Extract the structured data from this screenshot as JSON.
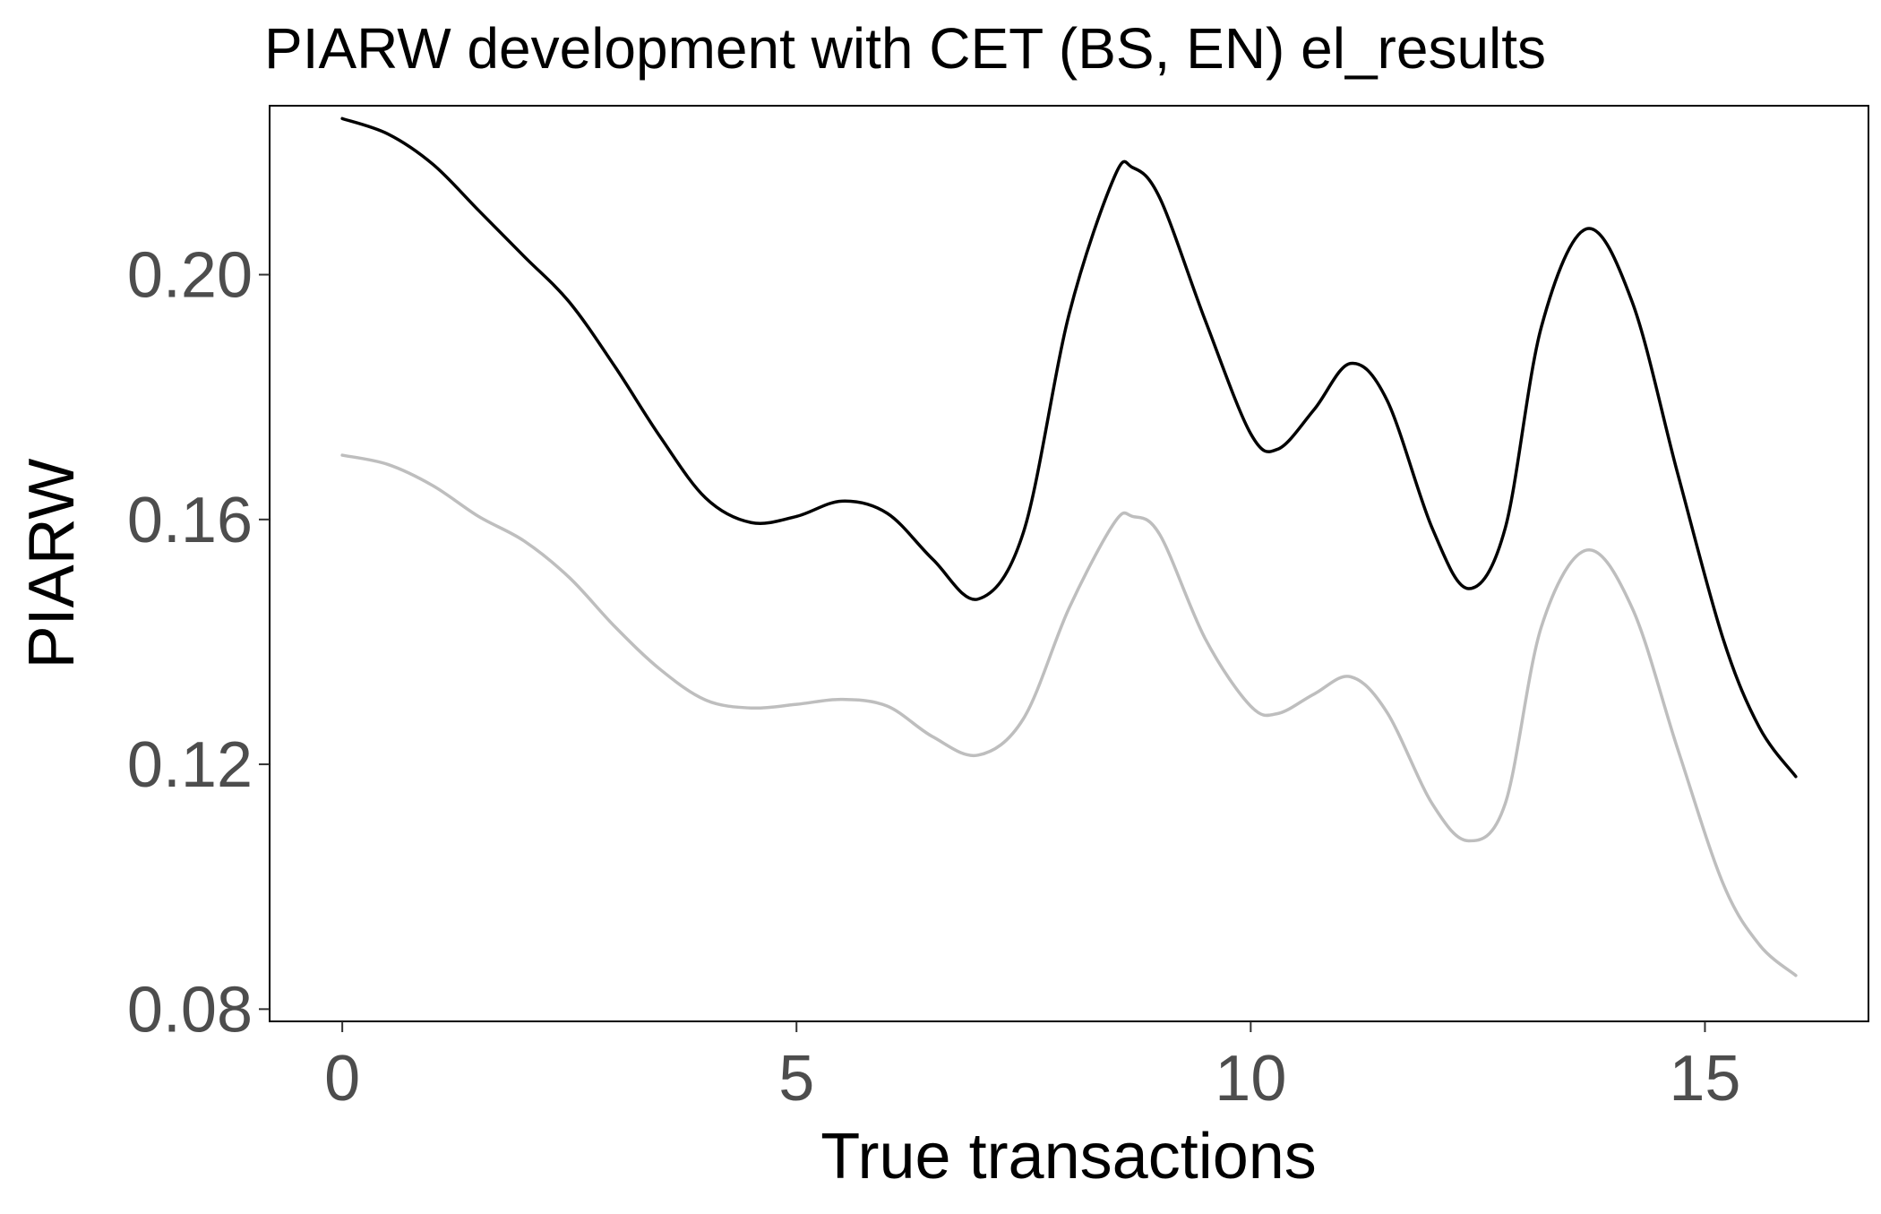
{
  "chart_data": {
    "type": "line",
    "title": "PIARW development with CET (BS, EN) el_results",
    "xlabel": "True transactions",
    "ylabel": "PIARW",
    "xlim": [
      -0.8,
      16.8
    ],
    "ylim": [
      0.078,
      0.2276
    ],
    "xticks": [
      0,
      5,
      10,
      15
    ],
    "xtick_labels": [
      "0",
      "5",
      "10",
      "15"
    ],
    "yticks": [
      0.08,
      0.12,
      0.16,
      0.2
    ],
    "ytick_labels": [
      "0.08",
      "0.12",
      "0.16",
      "0.20"
    ],
    "grid": false,
    "legend": "none",
    "series": [
      {
        "color": "#000000",
        "x": [
          0,
          0.5,
          1,
          1.5,
          2,
          2.5,
          3,
          3.5,
          4,
          4.5,
          5,
          5.5,
          6,
          6.5,
          7,
          7.5,
          8,
          8.5,
          8.7,
          9,
          9.5,
          10,
          10.3,
          10.7,
          11.1,
          11.5,
          12,
          12.4,
          12.8,
          13.2,
          13.7,
          14.2,
          14.7,
          15.2,
          15.6,
          16
        ],
        "y": [
          0.2255,
          0.223,
          0.218,
          0.2105,
          0.203,
          0.1955,
          0.185,
          0.1735,
          0.1635,
          0.1595,
          0.1605,
          0.163,
          0.161,
          0.1535,
          0.147,
          0.158,
          0.1935,
          0.216,
          0.2175,
          0.2125,
          0.1925,
          0.174,
          0.1715,
          0.178,
          0.1855,
          0.1795,
          0.1585,
          0.1487,
          0.1585,
          0.1915,
          0.2075,
          0.1955,
          0.1675,
          0.1405,
          0.126,
          0.118
        ]
      },
      {
        "color": "#bebebe",
        "x": [
          0,
          0.5,
          1,
          1.5,
          2,
          2.5,
          3,
          3.5,
          4,
          4.5,
          5,
          5.5,
          6,
          6.5,
          7,
          7.5,
          8,
          8.5,
          8.7,
          9,
          9.5,
          10,
          10.3,
          10.7,
          11.1,
          11.5,
          12,
          12.4,
          12.8,
          13.2,
          13.7,
          14.2,
          14.7,
          15.2,
          15.6,
          16
        ],
        "y": [
          0.1705,
          0.169,
          0.1655,
          0.1605,
          0.1565,
          0.1505,
          0.1425,
          0.1355,
          0.1305,
          0.1292,
          0.1298,
          0.1306,
          0.1295,
          0.1245,
          0.1215,
          0.1275,
          0.1455,
          0.1595,
          0.1605,
          0.1575,
          0.1405,
          0.1295,
          0.1283,
          0.1315,
          0.1343,
          0.1285,
          0.1135,
          0.1075,
          0.1135,
          0.1425,
          0.155,
          0.1455,
          0.1225,
          0.1005,
          0.0905,
          0.0855
        ]
      }
    ]
  }
}
